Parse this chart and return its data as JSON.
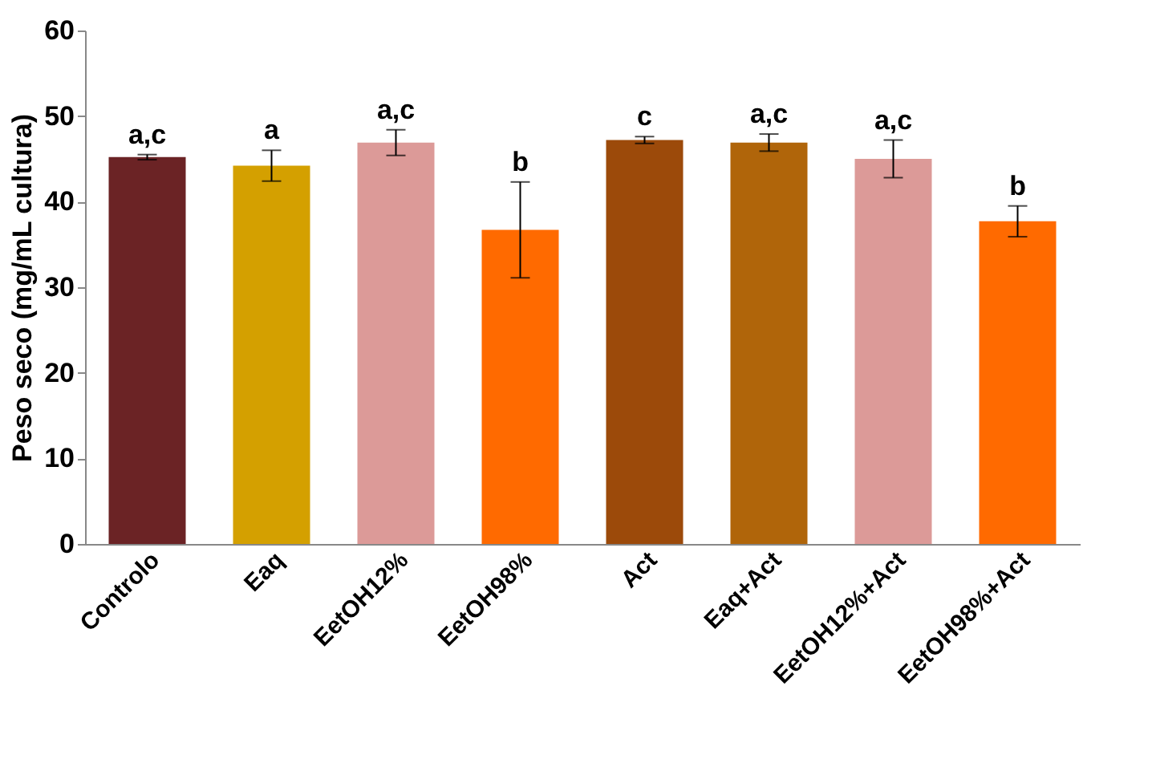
{
  "chart_data": {
    "type": "bar",
    "ylabel": "Peso seco (mg/mL cultura)",
    "categories": [
      "Controlo",
      "Eaq",
      "EetOH12%",
      "EetOH98%",
      "Act",
      "Eaq+Act",
      "EetOH12%+Act",
      "EetOH98%+Act"
    ],
    "values": [
      45.2,
      44.2,
      46.9,
      36.7,
      47.2,
      46.9,
      45.0,
      37.7
    ],
    "errors": [
      0.3,
      1.8,
      1.5,
      5.6,
      0.4,
      1.0,
      2.2,
      1.8
    ],
    "colors": [
      "#6b2325",
      "#d4a000",
      "#dc9a98",
      "#ff6a00",
      "#9c4a0a",
      "#b0650a",
      "#dc9a98",
      "#ff6a00"
    ],
    "ylim": [
      0,
      60
    ],
    "yticks": [
      0,
      10,
      20,
      30,
      40,
      50,
      60
    ],
    "grid": false,
    "annotations": [
      {
        "text": "a,c",
        "x": "Controlo",
        "y": 45.5
      },
      {
        "text": "a",
        "x": "Eaq",
        "y": 46.0
      },
      {
        "text": "a,c",
        "x": "EetOH12%",
        "y": 48.4
      },
      {
        "text": "b",
        "x": "EetOH98%",
        "y": 42.3
      },
      {
        "text": "c",
        "x": "Act",
        "y": 47.6
      },
      {
        "text": "a,c",
        "x": "Eaq+Act",
        "y": 47.9
      },
      {
        "text": "a,c",
        "x": "EetOH12%+Act",
        "y": 47.2
      },
      {
        "text": "b",
        "x": "EetOH98%+Act",
        "y": 39.5
      }
    ]
  }
}
